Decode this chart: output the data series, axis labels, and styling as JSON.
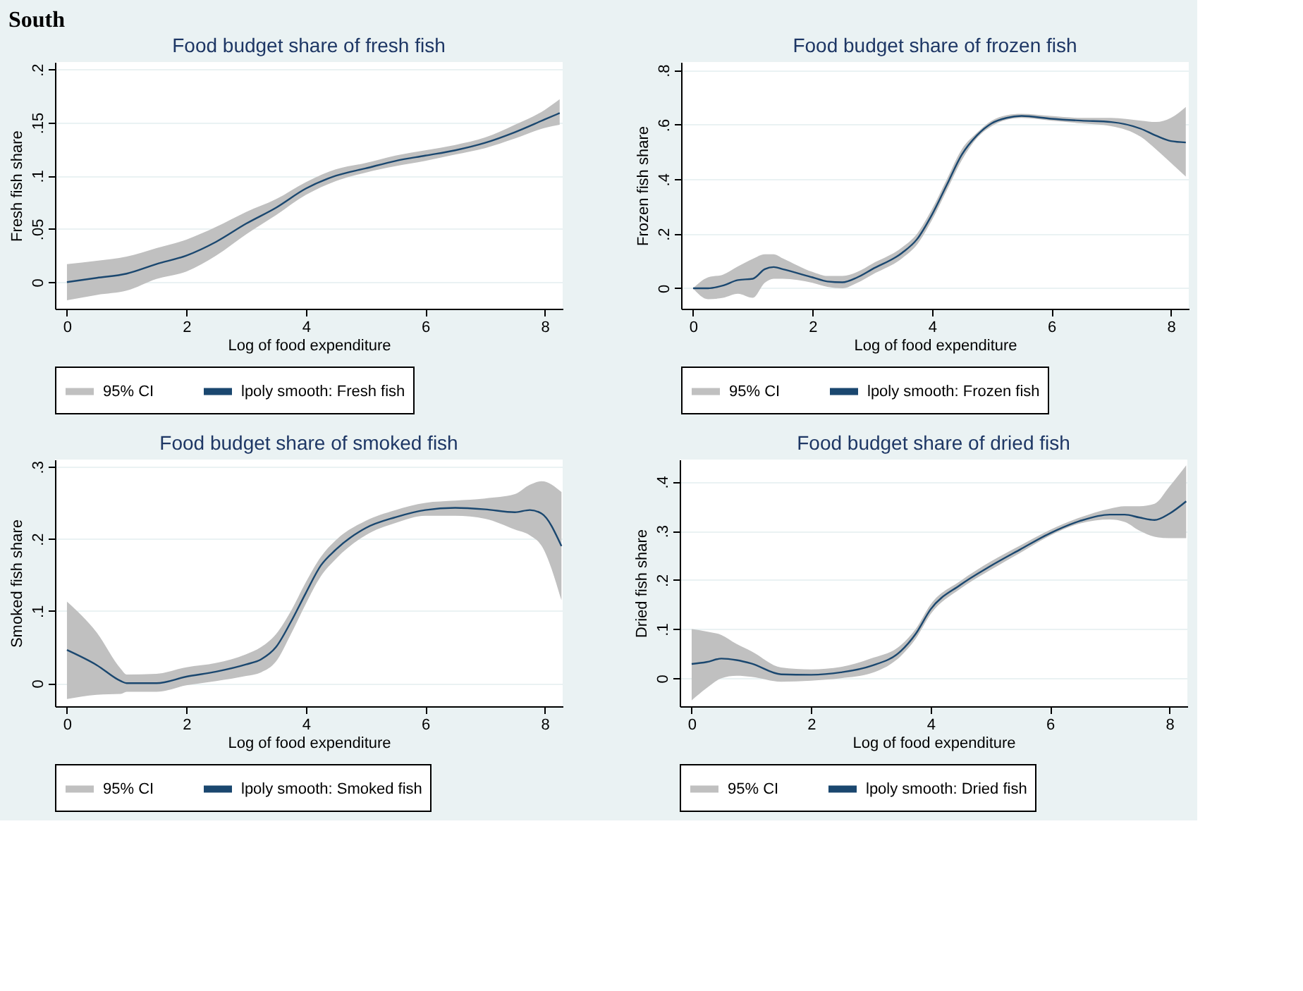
{
  "chart_data": [
    {
      "type": "line",
      "title": "Food budget share of fresh fish",
      "xlabel": "Log of food expenditure",
      "ylabel": "Fresh fish share",
      "annotations": [
        "South",
        "95% CI"
      ],
      "legend": "bottom",
      "grid": "y",
      "line_style": "solid",
      "xlim": [
        -0.2,
        8.3
      ],
      "xticks": [
        0,
        2,
        4,
        6,
        8
      ],
      "ylim": [
        -0.025,
        0.207
      ],
      "yticks": [
        0,
        {
          "value": 0.05,
          "label": ".05"
        },
        {
          "value": 0.1,
          "label": ".1"
        },
        {
          "value": 0.15,
          "label": ".15"
        },
        {
          "value": 0.2,
          "label": ".2"
        }
      ],
      "x": [
        0,
        0.5,
        1,
        1.5,
        2,
        2.5,
        3,
        3.5,
        4,
        4.5,
        5,
        5.5,
        6,
        6.5,
        7,
        7.5,
        8,
        8.25
      ],
      "series": [
        {
          "name": "lpoly smooth: Fresh fish",
          "color": "#1a476f",
          "values": [
            0,
            0.004,
            0.008,
            0.017,
            0.025,
            0.038,
            0.055,
            0.07,
            0.088,
            0.1,
            0.107,
            0.114,
            0.119,
            0.124,
            0.131,
            0.141,
            0.153,
            0.159
          ],
          "lower": [
            -0.017,
            -0.012,
            -0.008,
            0.003,
            0.01,
            0.025,
            0.045,
            0.063,
            0.082,
            0.095,
            0.103,
            0.109,
            0.114,
            0.12,
            0.126,
            0.135,
            0.145,
            0.148
          ],
          "upper": [
            0.017,
            0.02,
            0.024,
            0.032,
            0.04,
            0.052,
            0.066,
            0.078,
            0.094,
            0.106,
            0.112,
            0.119,
            0.124,
            0.129,
            0.136,
            0.148,
            0.162,
            0.172
          ]
        }
      ]
    },
    {
      "type": "line",
      "title": "Food budget share of frozen fish",
      "xlabel": "Log of food expenditure",
      "ylabel": "Frozen fish share",
      "annotations": [
        "95% CI"
      ],
      "legend": "bottom",
      "grid": "y",
      "line_style": "solid",
      "xlim": [
        -0.2,
        8.3
      ],
      "xticks": [
        0,
        2,
        4,
        6,
        8
      ],
      "ylim": [
        -0.075,
        0.83
      ],
      "yticks": [
        0,
        {
          "value": 0.2,
          "label": ".2"
        },
        {
          "value": 0.4,
          "label": ".4"
        },
        {
          "value": 0.6,
          "label": ".6"
        },
        {
          "value": 0.8,
          "label": ".8"
        }
      ],
      "x": [
        0,
        0.25,
        0.5,
        0.75,
        1,
        1.2,
        1.35,
        1.5,
        2,
        2.25,
        2.5,
        2.75,
        3,
        3.5,
        3.75,
        4,
        4.25,
        4.5,
        4.75,
        5,
        5.25,
        5.5,
        6,
        6.5,
        7,
        7.5,
        7.75,
        8,
        8.25
      ],
      "series": [
        {
          "name": "lpoly smooth: Frozen fish",
          "color": "#1a476f",
          "values": [
            0,
            0,
            0.01,
            0.03,
            0.035,
            0.07,
            0.078,
            0.07,
            0.04,
            0.025,
            0.022,
            0.04,
            0.07,
            0.13,
            0.18,
            0.27,
            0.38,
            0.49,
            0.56,
            0.605,
            0.625,
            0.632,
            0.622,
            0.615,
            0.61,
            0.585,
            0.56,
            0.54,
            0.535
          ],
          "lower": [
            0,
            -0.04,
            -0.035,
            -0.02,
            -0.035,
            0.02,
            0.035,
            0.035,
            0.02,
            0.005,
            0,
            0.02,
            0.05,
            0.11,
            0.16,
            0.25,
            0.36,
            0.47,
            0.55,
            0.595,
            0.618,
            0.625,
            0.615,
            0.605,
            0.595,
            0.555,
            0.51,
            0.46,
            0.41
          ],
          "upper": [
            0,
            0.04,
            0.05,
            0.08,
            0.108,
            0.125,
            0.125,
            0.11,
            0.06,
            0.045,
            0.045,
            0.06,
            0.09,
            0.15,
            0.2,
            0.29,
            0.4,
            0.51,
            0.57,
            0.615,
            0.635,
            0.64,
            0.632,
            0.625,
            0.625,
            0.615,
            0.61,
            0.625,
            0.665
          ]
        }
      ]
    },
    {
      "type": "line",
      "title": "Food budget share of smoked fish",
      "xlabel": "Log of food expenditure",
      "ylabel": "Smoked fish share",
      "annotations": [
        "95% CI"
      ],
      "legend": "bottom",
      "grid": "y",
      "line_style": "solid",
      "xlim": [
        -0.2,
        8.3
      ],
      "xticks": [
        0,
        2,
        4,
        6,
        8
      ],
      "ylim": [
        -0.032,
        0.31
      ],
      "yticks": [
        0,
        {
          "value": 0.1,
          "label": ".1"
        },
        {
          "value": 0.2,
          "label": ".2"
        },
        {
          "value": 0.3,
          "label": ".3"
        }
      ],
      "x": [
        0,
        0.5,
        0.9,
        1,
        1.5,
        2,
        2.5,
        3,
        3.25,
        3.5,
        3.75,
        4,
        4.25,
        4.5,
        5,
        5.5,
        6,
        6.5,
        7,
        7.5,
        7.75,
        7.95,
        8.28
      ],
      "series": [
        {
          "name": "lpoly smooth: Smoked fish",
          "color": "#1a476f",
          "values": [
            0.046,
            0.025,
            0.003,
            0,
            0,
            0.009,
            0.016,
            0.026,
            0.033,
            0.05,
            0.085,
            0.125,
            0.163,
            0.185,
            0.215,
            0.23,
            0.24,
            0.243,
            0.241,
            0.237,
            0.24,
            0.235,
            0.19
          ],
          "lower": [
            -0.022,
            -0.016,
            -0.015,
            -0.012,
            -0.012,
            -0.003,
            0.003,
            0.01,
            0.015,
            0.03,
            0.068,
            0.11,
            0.148,
            0.172,
            0.205,
            0.222,
            0.232,
            0.232,
            0.228,
            0.213,
            0.205,
            0.19,
            0.115
          ],
          "upper": [
            0.113,
            0.07,
            0.02,
            0.012,
            0.013,
            0.022,
            0.028,
            0.04,
            0.05,
            0.068,
            0.1,
            0.14,
            0.175,
            0.198,
            0.225,
            0.24,
            0.25,
            0.253,
            0.256,
            0.262,
            0.275,
            0.28,
            0.265
          ]
        }
      ]
    },
    {
      "type": "line",
      "title": "Food budget share of dried fish",
      "xlabel": "Log of food expenditure",
      "ylabel": "Dried fish share",
      "annotations": [
        "95% CI"
      ],
      "legend": "bottom",
      "grid": "y",
      "line_style": "solid",
      "xlim": [
        -0.2,
        8.3
      ],
      "xticks": [
        0,
        2,
        4,
        6,
        8
      ],
      "ylim": [
        -0.057,
        0.445
      ],
      "yticks": [
        0,
        {
          "value": 0.1,
          "label": ".1"
        },
        {
          "value": 0.2,
          "label": ".2"
        },
        {
          "value": 0.3,
          "label": ".3"
        },
        {
          "value": 0.4,
          "label": ".4"
        }
      ],
      "x": [
        0,
        0.25,
        0.5,
        0.75,
        1,
        1.5,
        2,
        2.5,
        3,
        3.5,
        3.75,
        4,
        4.5,
        5,
        5.5,
        6,
        6.5,
        7,
        7.25,
        7.5,
        7.75,
        8,
        8.28
      ],
      "series": [
        {
          "name": "lpoly smooth: Dried fish",
          "color": "#1a476f",
          "values": [
            0.029,
            0.033,
            0.04,
            0.037,
            0.03,
            0.008,
            0.007,
            0.012,
            0.025,
            0.055,
            0.09,
            0.14,
            0.19,
            0.228,
            0.262,
            0.295,
            0.32,
            0.333,
            0.333,
            0.327,
            0.322,
            0.335,
            0.36
          ],
          "lower": [
            -0.045,
            -0.02,
            0,
            0.005,
            0.003,
            -0.007,
            -0.005,
            0,
            0.01,
            0.045,
            0.08,
            0.13,
            0.182,
            0.22,
            0.255,
            0.29,
            0.315,
            0.323,
            0.318,
            0.3,
            0.288,
            0.285,
            0.285
          ],
          "upper": [
            0.1,
            0.095,
            0.088,
            0.07,
            0.055,
            0.022,
            0.018,
            0.023,
            0.04,
            0.067,
            0.1,
            0.15,
            0.198,
            0.237,
            0.27,
            0.302,
            0.327,
            0.345,
            0.35,
            0.35,
            0.355,
            0.39,
            0.433
          ]
        }
      ]
    }
  ]
}
